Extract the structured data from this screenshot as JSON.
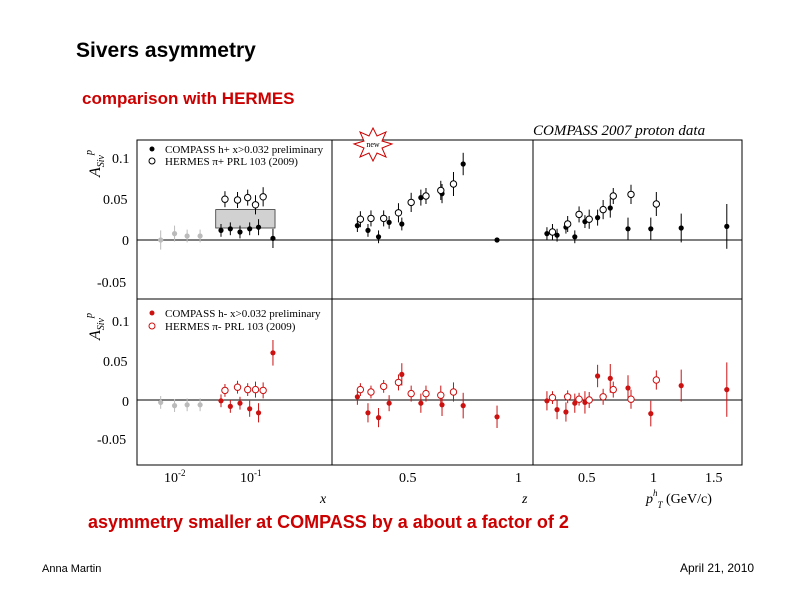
{
  "slide": {
    "title": "Sivers asymmetry",
    "subtitle": "comparison with HERMES",
    "conclusion": "asymmetry smaller at COMPASS by a about a factor of 2",
    "author": "Anna Martin",
    "date": "April 21, 2010",
    "new_badge": "new"
  },
  "colors": {
    "compass_top": "#000000",
    "compass_bottom": "#cc1111",
    "hermes": "#000000",
    "hermes_bottom": "#cc1111",
    "grey_points": "#bbbbbb",
    "band": "#999999",
    "title_red": "#cc0000"
  },
  "chart_data": {
    "type": "scatter",
    "title": "COMPASS 2007 proton data",
    "ylabel": "A_Siv^p",
    "ylim": [
      -0.075,
      0.125
    ],
    "yticks": [
      "0.1",
      "0.05",
      "0",
      "-0.05"
    ],
    "grid": false,
    "x_panels": [
      {
        "xlabel": "x",
        "scale": "log",
        "xlim": [
          0.003,
          0.9
        ],
        "tick_labels": [
          "10^-2",
          "10^-1"
        ]
      },
      {
        "xlabel": "z",
        "scale": "linear",
        "xlim": [
          0.1,
          1.05
        ],
        "tick_labels": [
          "0.5",
          "1"
        ]
      },
      {
        "xlabel": "p_T^h (GeV/c)",
        "scale": "linear",
        "xlim": [
          0.05,
          1.7
        ],
        "tick_labels": [
          "0.5",
          "1",
          "1.5"
        ]
      }
    ],
    "rows": [
      {
        "legend": [
          "COMPASS h+ x>0.032 preliminary",
          "HERMES π+ PRL 103 (2009)"
        ],
        "compass": {
          "x": [
            [
              0.006,
              0.009,
              0.013,
              0.019
            ],
            [
              0.035,
              0.046,
              0.061,
              0.081,
              0.105,
              0.16
            ],
            [
              0.22,
              0.27,
              0.32,
              0.37,
              0.43,
              0.52,
              0.62,
              0.72,
              0.88
            ],
            [
              0.16,
              0.24,
              0.31,
              0.38,
              0.46,
              0.56,
              0.66,
              0.8,
              0.98,
              1.22,
              1.58
            ]
          ],
          "y": [
            [
              0,
              0.008,
              0.005,
              0.005
            ],
            [
              0.012,
              0.014,
              0.01,
              0.014,
              0.016,
              0.002
            ],
            [
              0.018,
              0.012,
              0.004,
              0.022,
              0.02,
              0.053,
              0.058,
              0.095,
              0.0
            ],
            [
              0.008,
              0.006,
              0.016,
              0.004,
              0.023,
              0.028,
              0.04,
              0.014,
              0.014,
              0.015,
              0.017
            ]
          ],
          "err": [
            [
              0.012,
              0.01,
              0.008,
              0.008
            ],
            [
              0.008,
              0.008,
              0.008,
              0.008,
              0.01,
              0.012
            ],
            [
              0.008,
              0.008,
              0.008,
              0.008,
              0.008,
              0.01,
              0.012,
              0.014,
              0.001
            ],
            [
              0.008,
              0.008,
              0.008,
              0.008,
              0.008,
              0.01,
              0.012,
              0.014,
              0.014,
              0.018,
              0.028
            ]
          ],
          "grey": [
            true,
            false,
            false,
            false
          ]
        },
        "hermes_x": [
          [
            0.036,
            0.052,
            0.07,
            0.088,
            0.11
          ],
          [
            0.22,
            0.27,
            0.33,
            0.4,
            0.46,
            0.53,
            0.6,
            0.66
          ],
          [
            0.18,
            0.3,
            0.39,
            0.47,
            0.58,
            0.66,
            0.8,
            1.0
          ]
        ],
        "hermes_y": [
          [
            0.051,
            0.05,
            0.053,
            0.044,
            0.054
          ],
          [
            0.026,
            0.027,
            0.027,
            0.034,
            0.047,
            0.055,
            0.062,
            0.07
          ],
          [
            0.01,
            0.02,
            0.032,
            0.026,
            0.038,
            0.055,
            0.057,
            0.045
          ]
        ],
        "hermes_err": [
          0.01,
          0.01,
          0.01,
          0.012,
          0.012,
          0.01,
          0.012,
          0.015
        ]
      },
      {
        "legend": [
          "COMPASS h- x>0.032 preliminary",
          "HERMES π- PRL 103 (2009)"
        ],
        "compass": {
          "x": [
            [
              0.006,
              0.009,
              0.013,
              0.019
            ],
            [
              0.035,
              0.046,
              0.061,
              0.081,
              0.105,
              0.16
            ],
            [
              0.22,
              0.27,
              0.32,
              0.37,
              0.43,
              0.52,
              0.62,
              0.72,
              0.88
            ],
            [
              0.16,
              0.24,
              0.31,
              0.38,
              0.46,
              0.56,
              0.66,
              0.8,
              0.98,
              1.22,
              1.58
            ]
          ],
          "y": [
            [
              -0.003,
              -0.007,
              -0.006,
              -0.006
            ],
            [
              -0.001,
              -0.008,
              -0.004,
              -0.011,
              -0.016,
              0.059
            ],
            [
              0.004,
              -0.016,
              -0.022,
              -0.004,
              0.032,
              -0.004,
              -0.006,
              -0.007,
              -0.021
            ],
            [
              -0.001,
              -0.012,
              -0.015,
              -0.004,
              -0.003,
              0.03,
              0.027,
              0.015,
              -0.017,
              0.018,
              0.013
            ]
          ],
          "err": [
            [
              0.008,
              0.008,
              0.008,
              0.008
            ],
            [
              0.008,
              0.008,
              0.008,
              0.01,
              0.012,
              0.016
            ],
            [
              0.01,
              0.012,
              0.012,
              0.01,
              0.014,
              0.012,
              0.014,
              0.016,
              0.014
            ],
            [
              0.012,
              0.012,
              0.012,
              0.012,
              0.014,
              0.014,
              0.018,
              0.016,
              0.016,
              0.02,
              0.034
            ]
          ],
          "grey": [
            true,
            false,
            false,
            false
          ]
        },
        "hermes_x": [
          [
            0.036,
            0.052,
            0.07,
            0.088,
            0.11
          ],
          [
            0.22,
            0.27,
            0.33,
            0.4,
            0.46,
            0.53,
            0.6,
            0.66
          ],
          [
            0.18,
            0.3,
            0.39,
            0.47,
            0.58,
            0.66,
            0.8,
            1.0
          ]
        ],
        "hermes_y": [
          [
            0.012,
            0.016,
            0.013,
            0.013,
            0.012
          ],
          [
            0.013,
            0.01,
            0.017,
            0.022,
            0.008,
            0.008,
            0.006,
            0.01
          ],
          [
            0.003,
            0.004,
            0.001,
            0.0,
            0.004,
            0.013,
            0.001,
            0.025
          ]
        ],
        "hermes_err": [
          0.008,
          0.008,
          0.008,
          0.01,
          0.01,
          0.01,
          0.012,
          0.012
        ]
      }
    ],
    "hermes_band": [
      0.015,
      0.038
    ]
  }
}
